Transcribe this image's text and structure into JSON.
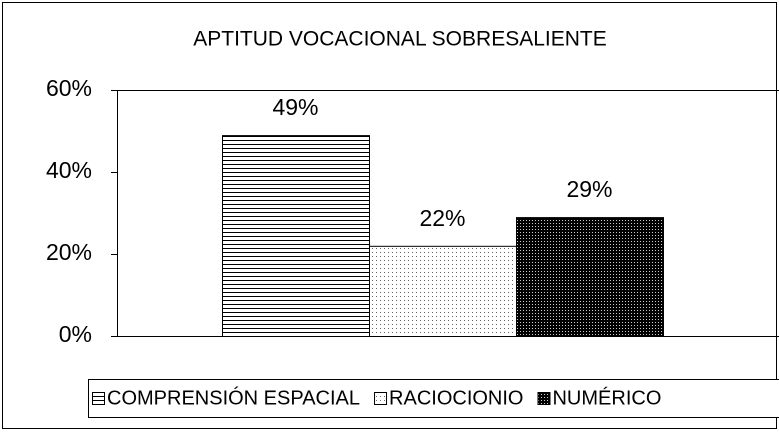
{
  "chart_data": {
    "type": "bar",
    "title": "APTITUD VOCACIONAL SOBRESALIENTE",
    "categories": [
      null
    ],
    "series": [
      {
        "name": "COMPRENSIÓN ESPACIAL",
        "color": "#000000",
        "pattern": "horizontal-lines",
        "values": [
          49
        ],
        "value_labels": [
          "49%"
        ]
      },
      {
        "name": "RACIOCIONIO",
        "color": "#000000",
        "pattern": "sparse-dots",
        "values": [
          22
        ],
        "value_labels": [
          "22%"
        ]
      },
      {
        "name": "NUMÉRICO",
        "color": "#000000",
        "pattern": "dense-dots",
        "values": [
          29
        ],
        "value_labels": [
          "29%"
        ]
      }
    ],
    "ylim": [
      0,
      60
    ],
    "yticks": [
      {
        "value": 0,
        "label": "0%"
      },
      {
        "value": 20,
        "label": "20%"
      },
      {
        "value": 40,
        "label": "40%"
      },
      {
        "value": 60,
        "label": "60%"
      }
    ],
    "legend": "bottom"
  }
}
